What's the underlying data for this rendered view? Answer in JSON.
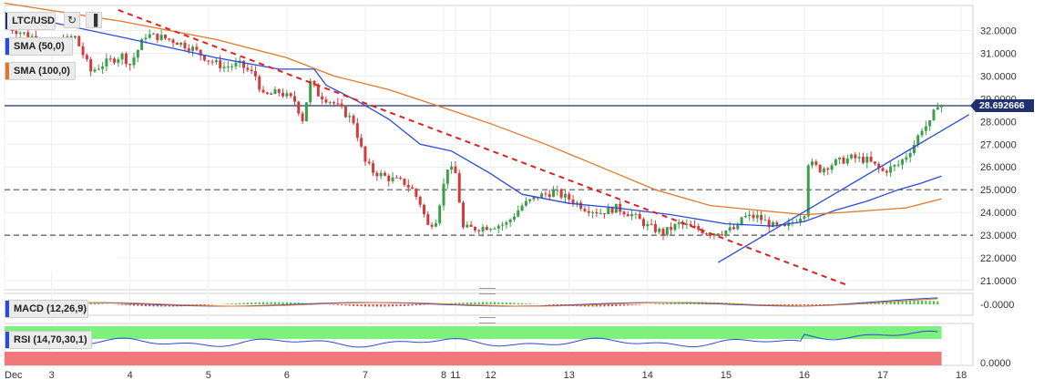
{
  "symbol": "LTC/USD",
  "toolbar": {
    "refresh_icon": "refresh-icon",
    "chart_icon": "bar-chart-icon"
  },
  "indicators": {
    "sma50": {
      "label": "SMA (50,0)",
      "color": "#2a4bd7"
    },
    "sma100": {
      "label": "SMA (100,0)",
      "color": "#e0782a"
    },
    "macd": {
      "label": "MACD (12,26,9)"
    },
    "rsi": {
      "label": "RSI (14,70,30,1)"
    }
  },
  "current_price": {
    "label": "28.692666",
    "value": 28.692666
  },
  "macd_axis": "-0.0000",
  "rsi_axis": "0.0000",
  "chart_data": {
    "type": "candlestick",
    "ylim": [
      20.6,
      33.1
    ],
    "yticks": [
      "21.0000",
      "22.0000",
      "23.0000",
      "24.0000",
      "25.0000",
      "26.0000",
      "27.0000",
      "28.0000",
      "29.0000",
      "30.0000",
      "31.0000",
      "32.0000"
    ],
    "ytick_values": [
      21,
      22,
      23,
      24,
      25,
      26,
      27,
      28,
      29,
      30,
      31,
      32
    ],
    "x_range": [
      0,
      12.35
    ],
    "xticks": [
      {
        "t": 0.0,
        "label": "Dec"
      },
      {
        "t": 0.6,
        "label": "3"
      },
      {
        "t": 1.6,
        "label": "4"
      },
      {
        "t": 2.6,
        "label": "5"
      },
      {
        "t": 3.6,
        "label": "6"
      },
      {
        "t": 4.6,
        "label": "7"
      },
      {
        "t": 5.6,
        "label": "8"
      },
      {
        "t": 5.75,
        "label": "11"
      },
      {
        "t": 6.2,
        "label": "12"
      },
      {
        "t": 7.2,
        "label": "13"
      },
      {
        "t": 8.2,
        "label": "14"
      },
      {
        "t": 9.2,
        "label": "15"
      },
      {
        "t": 10.2,
        "label": "16"
      },
      {
        "t": 11.2,
        "label": "17"
      },
      {
        "t": 12.2,
        "label": "18"
      }
    ],
    "close_path": [
      [
        0,
        32.2
      ],
      [
        0.3,
        31.8
      ],
      [
        0.6,
        31.4
      ],
      [
        0.9,
        31.7
      ],
      [
        1.1,
        30.2
      ],
      [
        1.3,
        30.6
      ],
      [
        1.5,
        30.9
      ],
      [
        1.6,
        30.5
      ],
      [
        1.8,
        31.8
      ],
      [
        2.0,
        31.7
      ],
      [
        2.2,
        31.5
      ],
      [
        2.4,
        31.2
      ],
      [
        2.6,
        30.7
      ],
      [
        2.8,
        30.4
      ],
      [
        3.0,
        30.5
      ],
      [
        3.2,
        30.0
      ],
      [
        3.3,
        29.1
      ],
      [
        3.5,
        29.3
      ],
      [
        3.7,
        28.9
      ],
      [
        3.8,
        28.1
      ],
      [
        3.9,
        29.7
      ],
      [
        4.0,
        29.2
      ],
      [
        4.2,
        28.8
      ],
      [
        4.3,
        28.5
      ],
      [
        4.45,
        28.0
      ],
      [
        4.6,
        26.2
      ],
      [
        4.7,
        25.8
      ],
      [
        4.9,
        25.5
      ],
      [
        5.1,
        25.3
      ],
      [
        5.2,
        25.0
      ],
      [
        5.3,
        24.4
      ],
      [
        5.4,
        23.4
      ],
      [
        5.5,
        23.7
      ],
      [
        5.6,
        25.2
      ],
      [
        5.65,
        26.0
      ],
      [
        5.75,
        25.7
      ],
      [
        5.85,
        23.3
      ],
      [
        6.0,
        23.3
      ],
      [
        6.2,
        23.4
      ],
      [
        6.4,
        23.5
      ],
      [
        6.6,
        24.3
      ],
      [
        6.8,
        24.7
      ],
      [
        7.0,
        24.9
      ],
      [
        7.2,
        24.6
      ],
      [
        7.4,
        24.2
      ],
      [
        7.6,
        24.0
      ],
      [
        7.8,
        24.2
      ],
      [
        8.0,
        23.9
      ],
      [
        8.2,
        23.4
      ],
      [
        8.4,
        23.1
      ],
      [
        8.6,
        23.5
      ],
      [
        8.8,
        23.3
      ],
      [
        9.0,
        23.1
      ],
      [
        9.2,
        23.2
      ],
      [
        9.35,
        23.3
      ],
      [
        9.4,
        23.8
      ],
      [
        9.6,
        23.8
      ],
      [
        9.8,
        23.4
      ],
      [
        9.95,
        23.3
      ],
      [
        10.1,
        23.7
      ],
      [
        10.2,
        24.0
      ],
      [
        10.25,
        26.2
      ],
      [
        10.4,
        25.9
      ],
      [
        10.6,
        26.2
      ],
      [
        10.8,
        26.4
      ],
      [
        11.0,
        26.3
      ],
      [
        11.2,
        25.8
      ],
      [
        11.4,
        26.1
      ],
      [
        11.5,
        26.5
      ],
      [
        11.6,
        27.0
      ],
      [
        11.7,
        27.7
      ],
      [
        11.8,
        27.9
      ],
      [
        11.9,
        28.8
      ],
      [
        11.95,
        28.69
      ]
    ],
    "series": [
      {
        "name": "SMA (50,0)",
        "color": "#2a4bd7",
        "points": [
          [
            0,
            32.8
          ],
          [
            1.5,
            31.7
          ],
          [
            2.7,
            30.8
          ],
          [
            3.5,
            30.3
          ],
          [
            3.95,
            30.3
          ],
          [
            4.1,
            29.6
          ],
          [
            4.5,
            28.9
          ],
          [
            4.9,
            28.1
          ],
          [
            5.3,
            27.0
          ],
          [
            5.7,
            26.7
          ],
          [
            6.2,
            25.7
          ],
          [
            6.6,
            24.8
          ],
          [
            7.2,
            24.4
          ],
          [
            7.8,
            24.2
          ],
          [
            8.5,
            23.9
          ],
          [
            9.2,
            23.5
          ],
          [
            9.8,
            23.4
          ],
          [
            10.2,
            23.6
          ],
          [
            10.6,
            24.1
          ],
          [
            11.0,
            24.5
          ],
          [
            11.4,
            25.0
          ],
          [
            11.7,
            25.3
          ],
          [
            11.95,
            25.6
          ]
        ]
      },
      {
        "name": "SMA (100,0)",
        "color": "#e0782a",
        "points": [
          [
            0,
            33.2
          ],
          [
            1.5,
            32.4
          ],
          [
            2.7,
            31.6
          ],
          [
            3.6,
            30.8
          ],
          [
            4.2,
            30.0
          ],
          [
            4.9,
            29.4
          ],
          [
            5.6,
            28.6
          ],
          [
            6.2,
            27.9
          ],
          [
            6.9,
            27.0
          ],
          [
            7.6,
            26.0
          ],
          [
            8.3,
            25.0
          ],
          [
            9.0,
            24.3
          ],
          [
            9.6,
            24.1
          ],
          [
            10.2,
            23.9
          ],
          [
            10.7,
            24.0
          ],
          [
            11.1,
            24.1
          ],
          [
            11.5,
            24.2
          ],
          [
            11.95,
            24.6
          ]
        ]
      }
    ],
    "trendlines": [
      {
        "style": "dashed",
        "color": "#e02020",
        "from": [
          1.45,
          32.9
        ],
        "to": [
          10.75,
          20.8
        ]
      },
      {
        "style": "solid",
        "color": "#2a4bd7",
        "from": [
          9.1,
          21.8
        ],
        "to": [
          12.3,
          28.3
        ]
      }
    ],
    "hlines": [
      {
        "value": 25.0,
        "style": "dashed",
        "color": "#555555"
      },
      {
        "value": 23.0,
        "style": "dashed",
        "color": "#555555"
      },
      {
        "value": 28.692666,
        "style": "solid",
        "color": "#1e3170"
      }
    ]
  }
}
